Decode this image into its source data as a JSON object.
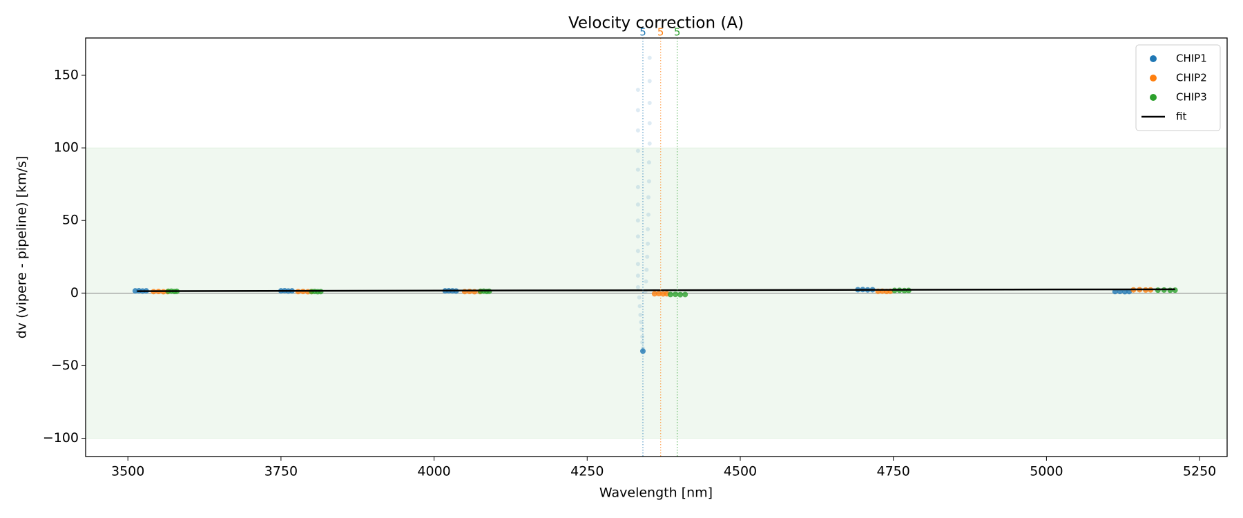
{
  "chart_data": {
    "type": "scatter",
    "title": "Velocity correction (A)",
    "x_label": "Wavelength [nm]",
    "y_label": "dv (vipere - pipeline) [km/s]",
    "xlim": [
      3431,
      5295
    ],
    "ylim": [
      -112.6,
      175.7
    ],
    "xticks": [
      3500,
      3750,
      4000,
      4250,
      4500,
      4750,
      5000,
      5250
    ],
    "yticks": [
      {
        "value": -100,
        "label": "−100"
      },
      {
        "value": -50,
        "label": "−50"
      },
      0,
      50,
      100,
      150
    ],
    "band": {
      "from": -100,
      "to": 100,
      "color": "#2ca02c"
    },
    "zero_line": 0,
    "legend": "upper right",
    "series": [
      {
        "name": "CHIP1",
        "color": "#1f77b4",
        "x": [
          3512,
          3518,
          3524,
          3530,
          3750,
          3756,
          3762,
          3768,
          4018,
          4024,
          4030,
          4036,
          4341,
          4692,
          4700,
          4708,
          4716,
          5112,
          5120,
          5128,
          5135
        ],
        "y": [
          1.5,
          1.6,
          1.4,
          1.5,
          1.5,
          1.6,
          1.4,
          1.5,
          1.5,
          1.6,
          1.5,
          1.4,
          -40,
          2.3,
          2.4,
          2.2,
          2.3,
          1.0,
          1.1,
          0.9,
          1.0
        ]
      },
      {
        "name": "CHIP2",
        "color": "#ff7f0e",
        "x": [
          3542,
          3550,
          3558,
          3565,
          3778,
          3786,
          3794,
          3800,
          4050,
          4058,
          4066,
          4075,
          4360,
          4367,
          4374,
          4380,
          4725,
          4732,
          4739,
          4745,
          5142,
          5152,
          5162,
          5170
        ],
        "y": [
          1.0,
          1.1,
          0.9,
          1.0,
          1.0,
          1.1,
          0.9,
          1.0,
          1.0,
          1.1,
          0.9,
          1.0,
          -0.5,
          -0.4,
          -0.6,
          -0.5,
          1.2,
          1.3,
          1.1,
          1.2,
          2.2,
          2.3,
          2.1,
          2.2
        ]
      },
      {
        "name": "CHIP3",
        "color": "#2ca02c",
        "x": [
          3566,
          3571,
          3576,
          3580,
          3800,
          3805,
          3810,
          3815,
          4076,
          4081,
          4086,
          4090,
          4386,
          4394,
          4402,
          4410,
          4752,
          4760,
          4768,
          4775,
          5182,
          5192,
          5202,
          5210
        ],
        "y": [
          1.2,
          1.3,
          1.1,
          1.2,
          1.0,
          1.1,
          0.9,
          1.0,
          1.2,
          1.3,
          1.1,
          1.2,
          -1.0,
          -0.9,
          -1.1,
          -1.0,
          1.8,
          1.9,
          1.7,
          1.8,
          2.0,
          2.1,
          1.9,
          2.0
        ]
      },
      {
        "name": "fit",
        "color": "#000000",
        "mode": "line",
        "x": [
          3515,
          5210
        ],
        "y": [
          1.3,
          2.6
        ]
      }
    ],
    "rejected": {
      "color": "#1f77b4",
      "x": [
        4333,
        4333,
        4333,
        4333,
        4333,
        4333,
        4333,
        4333,
        4333,
        4333,
        4333,
        4333,
        4333,
        4335,
        4336,
        4337,
        4338,
        4339,
        4340,
        4340,
        4341,
        4352,
        4352,
        4352,
        4352,
        4352,
        4351,
        4351,
        4350,
        4350,
        4349,
        4349,
        4348,
        4347,
        4346,
        4345
      ],
      "y": [
        140,
        126,
        112,
        98,
        85,
        73,
        61,
        50,
        39,
        29,
        20,
        12,
        4,
        -3,
        -9,
        -15,
        -20,
        -25,
        -30,
        -34,
        -38,
        162,
        146,
        131,
        117,
        103,
        90,
        77,
        66,
        54,
        44,
        34,
        25,
        16,
        8,
        1
      ]
    },
    "vlines": [
      {
        "x": 4341,
        "color": "#1f77b4",
        "label": "5"
      },
      {
        "x": 4370,
        "color": "#ff7f0e",
        "label": "5"
      },
      {
        "x": 4397,
        "color": "#2ca02c",
        "label": "5"
      }
    ]
  }
}
